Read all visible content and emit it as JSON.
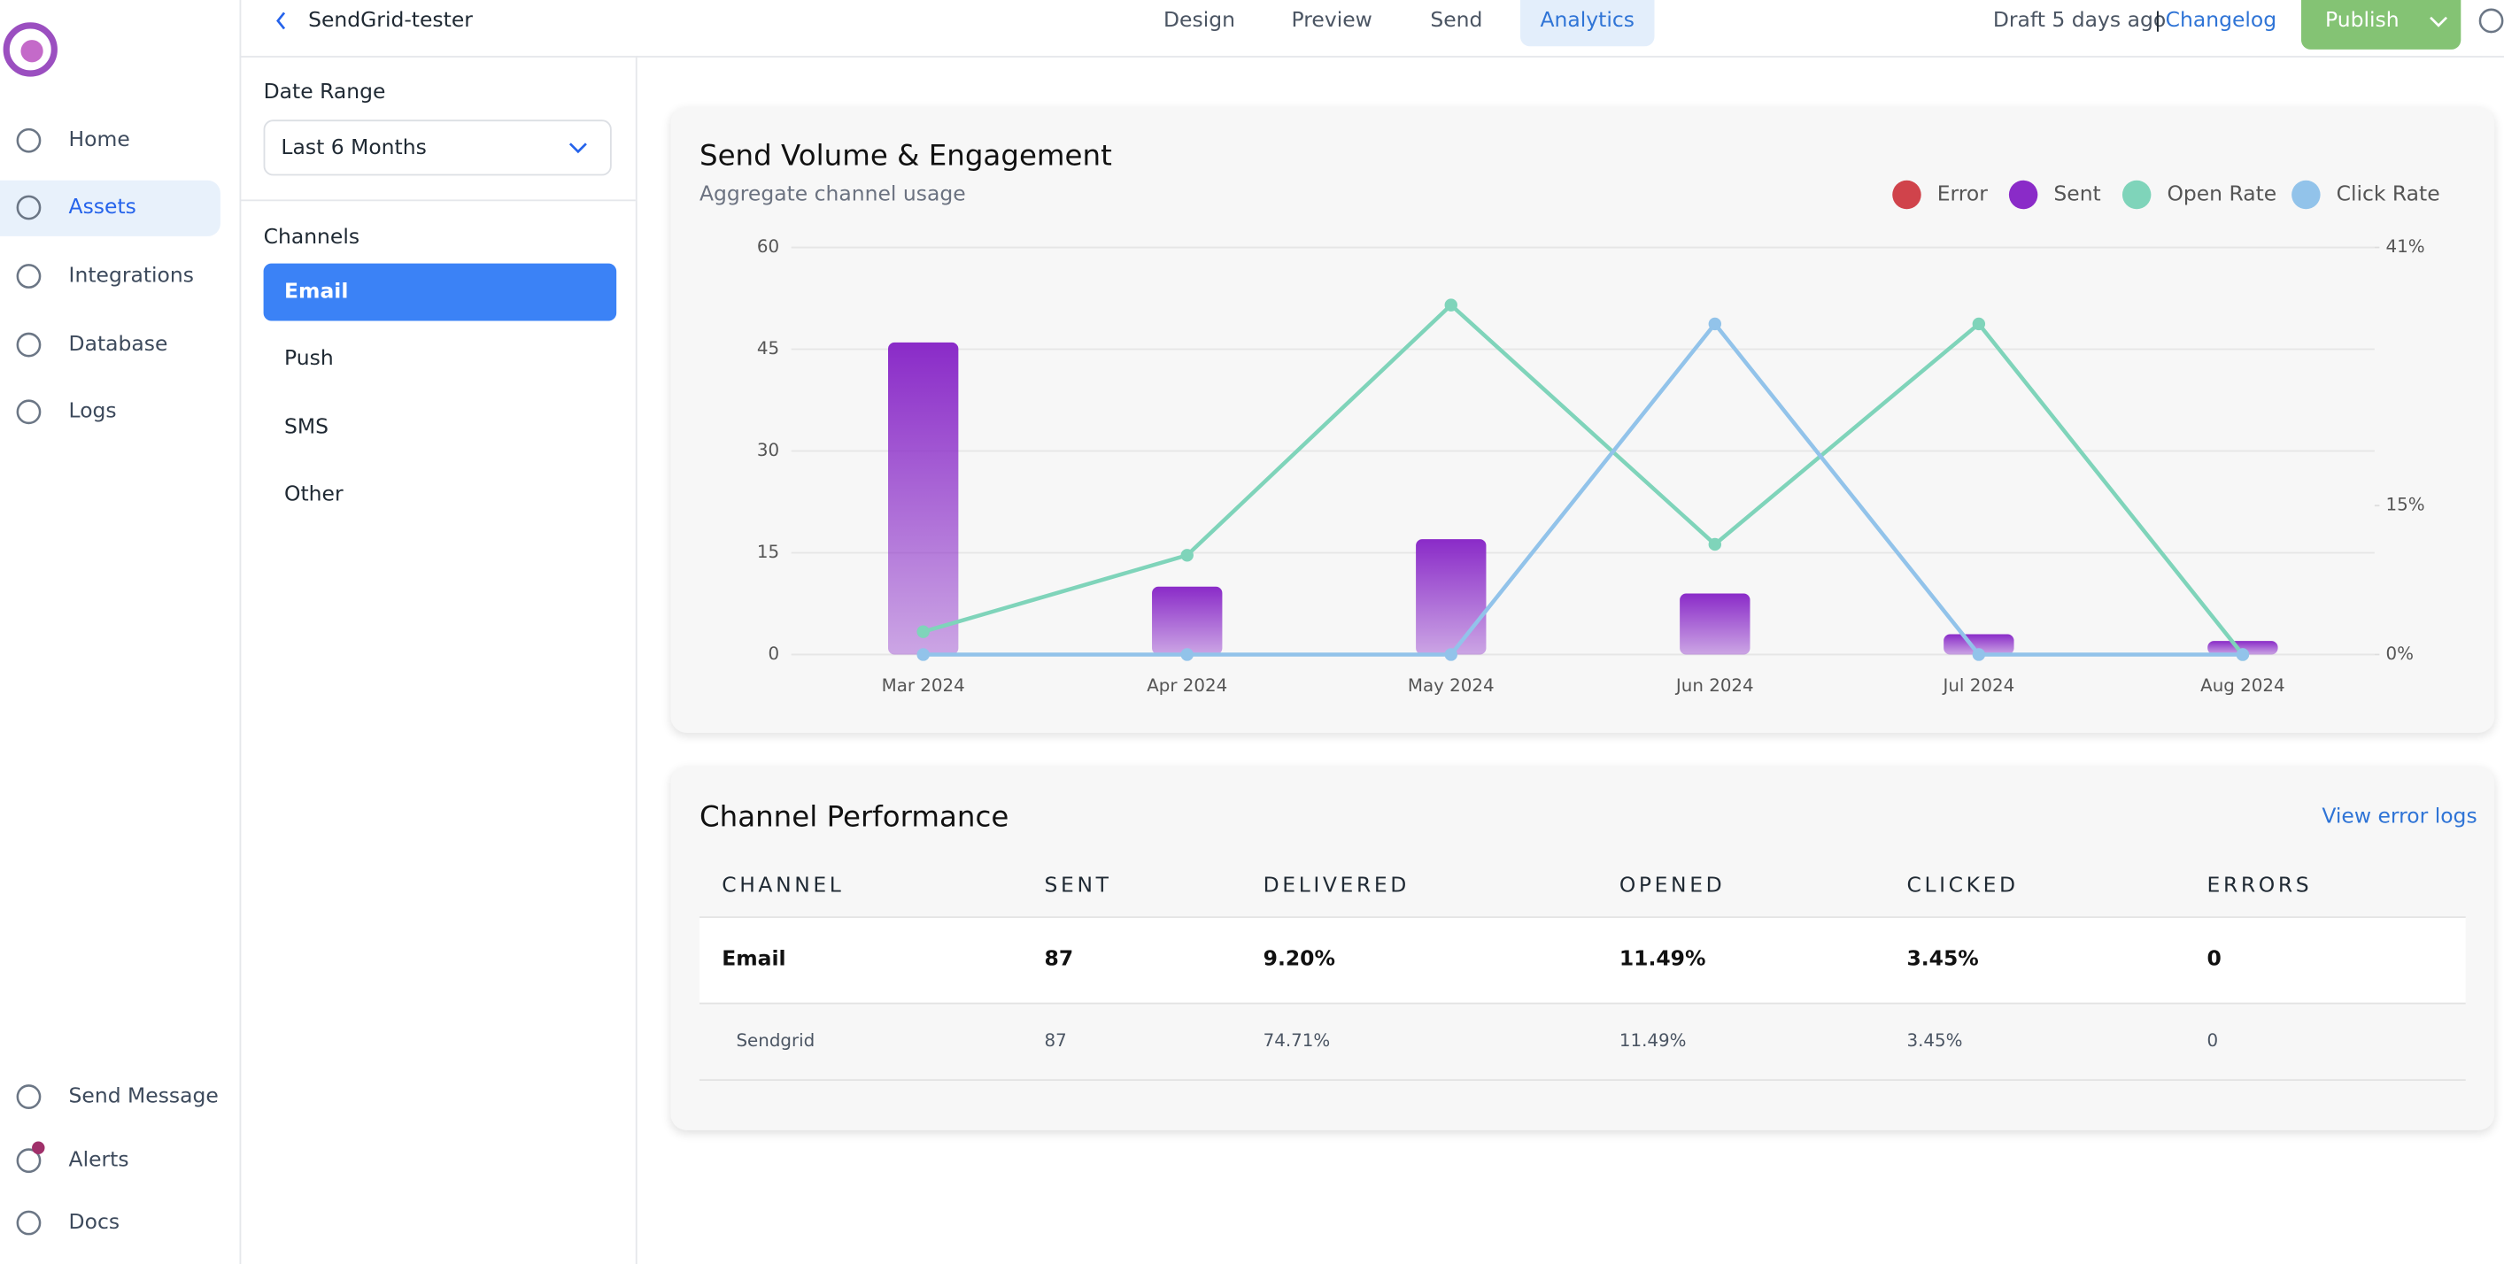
{
  "sidebar": {
    "items": [
      "Home",
      "Assets",
      "Integrations",
      "Database",
      "Logs"
    ],
    "bottom_items": [
      "Send Message",
      "Alerts",
      "Docs"
    ]
  },
  "header": {
    "back_title": "SendGrid-tester",
    "tabs": [
      "Design",
      "Preview",
      "Send",
      "Analytics"
    ],
    "status": "Draft 5 days ago",
    "separator": "|",
    "changelog": "Changelog",
    "publish": "Publish"
  },
  "filters": {
    "date_range_label": "Date Range",
    "date_range_value": "Last 6 Months",
    "channels_label": "Channels",
    "channels": [
      "Email",
      "Push",
      "SMS",
      "Other"
    ]
  },
  "chart_data": {
    "type": "combo",
    "title": "Send Volume & Engagement",
    "subtitle": "Aggregate channel usage",
    "categories": [
      "Mar 2024",
      "Apr 2024",
      "May 2024",
      "Jun 2024",
      "Jul 2024",
      "Aug 2024"
    ],
    "series": [
      {
        "name": "Error",
        "color": "#d0434b",
        "type": "bar",
        "values": [
          0,
          0,
          0,
          0,
          0,
          0
        ]
      },
      {
        "name": "Sent",
        "color": "#8a2bc8",
        "type": "bar",
        "values": [
          46,
          10,
          17,
          9,
          3,
          2
        ]
      },
      {
        "name": "Open Rate",
        "color": "#7fd4ba",
        "type": "line",
        "axis": "y2",
        "values": [
          2.3,
          10,
          35.2,
          11.1,
          33.3,
          0
        ]
      },
      {
        "name": "Click Rate",
        "color": "#92c3ea",
        "type": "line",
        "axis": "y2",
        "values": [
          0,
          0,
          0,
          33.3,
          0,
          0
        ]
      }
    ],
    "ylim": [
      0,
      60
    ],
    "yticks": [
      0,
      15,
      30,
      45,
      60
    ],
    "y2lim": [
      0,
      41
    ],
    "y2ticks": [
      {
        "value": 0,
        "label": "0%"
      },
      {
        "value": 15,
        "label": "15%"
      },
      {
        "value": 41,
        "label": "41%"
      }
    ],
    "grid": true,
    "legend": "top-right"
  },
  "table": {
    "title": "Channel Performance",
    "link": "View error logs",
    "columns": [
      "CHANNEL",
      "SENT",
      "DELIVERED",
      "OPENED",
      "CLICKED",
      "ERRORS"
    ],
    "rows": [
      [
        "Email",
        "87",
        "9.20%",
        "11.49%",
        "3.45%",
        "0"
      ],
      [
        "Sendgrid",
        "87",
        "74.71%",
        "11.49%",
        "3.45%",
        "0"
      ]
    ]
  }
}
